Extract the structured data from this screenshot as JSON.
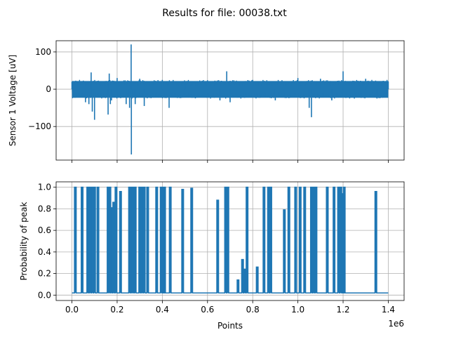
{
  "figure": {
    "suptitle": "Results for file: 00038.txt"
  },
  "chart_data": [
    {
      "type": "line",
      "panel": "top",
      "title": "",
      "xlabel": "",
      "ylabel": "Sensor 1 Voltage [uV]",
      "xlim": [
        -70000,
        1470000
      ],
      "ylim": [
        -190,
        130
      ],
      "x_ticks": [
        0,
        200000,
        400000,
        600000,
        800000,
        1000000,
        1200000,
        1400000
      ],
      "x_tick_labels": [],
      "y_ticks": [
        -100,
        0,
        100
      ],
      "y_tick_labels": [
        "−100",
        "0",
        "100"
      ],
      "grid": true,
      "color": "#1f77b4",
      "noise_band": [
        -23,
        22
      ],
      "series": [
        {
          "x": [
            0,
            60000,
            75000,
            85000,
            90000,
            100000,
            160000,
            165000,
            170000,
            175000,
            200000,
            240000,
            255000,
            262000,
            263000,
            280000,
            300000,
            320000,
            400000,
            430000,
            500000,
            600000,
            655000,
            685000,
            700000,
            800000,
            900000,
            1000000,
            1050000,
            1060000,
            1100000,
            1150000,
            1195000,
            1200000,
            1250000,
            1300000,
            1350000,
            1400000
          ],
          "y": [
            20,
            -35,
            -40,
            45,
            -60,
            -82,
            -68,
            42,
            -40,
            -30,
            30,
            -40,
            -50,
            120,
            -175,
            -40,
            28,
            -45,
            25,
            -50,
            20,
            24,
            -30,
            48,
            -35,
            25,
            -30,
            30,
            -50,
            -75,
            28,
            -30,
            15,
            48,
            -25,
            28,
            -25,
            20
          ]
        }
      ]
    },
    {
      "type": "line",
      "panel": "bottom",
      "title": "",
      "xlabel": "Points",
      "ylabel": "Probability of peak",
      "xlim": [
        -70000,
        1470000
      ],
      "ylim": [
        -0.05,
        1.05
      ],
      "x_ticks": [
        0,
        200000,
        400000,
        600000,
        800000,
        1000000,
        1200000,
        1400000
      ],
      "x_tick_labels": [
        "0.0",
        "0.2",
        "0.4",
        "0.6",
        "0.8",
        "1.0",
        "1.2",
        "1.4"
      ],
      "x_offset_text": "1e6",
      "y_ticks": [
        0.0,
        0.2,
        0.4,
        0.6,
        0.8,
        1.0
      ],
      "y_tick_labels": [
        "0.0",
        "0.2",
        "0.4",
        "0.6",
        "0.8",
        "1.0"
      ],
      "grid": true,
      "color": "#1f77b4",
      "baseline": 0.02,
      "series": [
        {
          "peaks_x": [
            15000,
            45000,
            70000,
            80000,
            90000,
            100000,
            115000,
            160000,
            168000,
            175000,
            185000,
            195000,
            215000,
            255000,
            262000,
            270000,
            280000,
            300000,
            310000,
            320000,
            335000,
            375000,
            395000,
            405000,
            410000,
            435000,
            490000,
            530000,
            645000,
            680000,
            690000,
            735000,
            755000,
            765000,
            775000,
            820000,
            850000,
            870000,
            880000,
            940000,
            960000,
            990000,
            1010000,
            1030000,
            1060000,
            1070000,
            1080000,
            1130000,
            1160000,
            1180000,
            1190000,
            1200000,
            1205000,
            1345000
          ],
          "peaks_y": [
            1.0,
            1.0,
            1.0,
            1.0,
            1.0,
            1.0,
            1.0,
            1.0,
            1.0,
            0.81,
            0.86,
            1.0,
            0.96,
            1.0,
            1.0,
            1.0,
            1.0,
            1.0,
            1.0,
            1.0,
            1.0,
            1.0,
            1.0,
            1.0,
            1.0,
            1.0,
            0.98,
            0.99,
            0.88,
            1.0,
            1.0,
            0.14,
            0.33,
            0.24,
            1.0,
            0.26,
            1.0,
            1.0,
            1.0,
            0.79,
            1.0,
            1.0,
            1.0,
            1.0,
            1.0,
            1.0,
            1.0,
            1.0,
            1.0,
            1.0,
            1.0,
            0.94,
            1.0,
            0.96
          ]
        }
      ]
    }
  ]
}
